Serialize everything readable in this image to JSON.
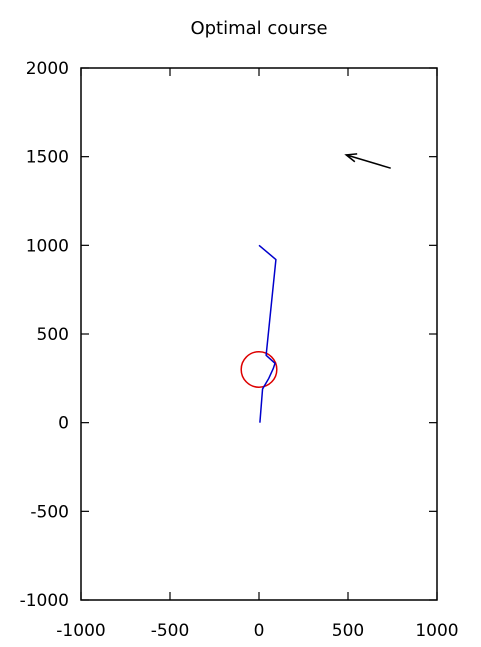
{
  "chart_data": {
    "type": "line",
    "title": "Optimal course",
    "xlabel": "",
    "ylabel": "",
    "xlim": [
      -1000,
      1000
    ],
    "ylim": [
      -1000,
      2000
    ],
    "x_ticks": [
      -1000,
      -500,
      0,
      500,
      1000
    ],
    "x_tick_labels": [
      "-1000",
      "-500",
      "0",
      "500",
      "1000"
    ],
    "y_ticks": [
      -1000,
      -500,
      0,
      500,
      1000,
      1500,
      2000
    ],
    "y_tick_labels": [
      "-1000",
      "-500",
      "0",
      "500",
      "1000",
      "1500",
      "2000"
    ],
    "grid": false,
    "colors": {
      "path": "#0000cc",
      "circle": "#dd0000",
      "arrow": "#000000",
      "axes": "#000000"
    },
    "series": [
      {
        "values": [
          {
            "x": 0,
            "y": 1000
          },
          {
            "x": 95,
            "y": 920
          },
          {
            "x": 40,
            "y": 380
          },
          {
            "x": 90,
            "y": 335
          },
          {
            "x": 80,
            "y": 305
          },
          {
            "x": 55,
            "y": 250
          },
          {
            "x": 20,
            "y": 190
          },
          {
            "x": 5,
            "y": 0
          }
        ]
      }
    ],
    "circle": {
      "center": {
        "x": 0,
        "y": 300
      },
      "radius": 100
    },
    "arrow": {
      "from": {
        "x": 740,
        "y": 1435
      },
      "to": {
        "x": 490,
        "y": 1510
      }
    }
  }
}
